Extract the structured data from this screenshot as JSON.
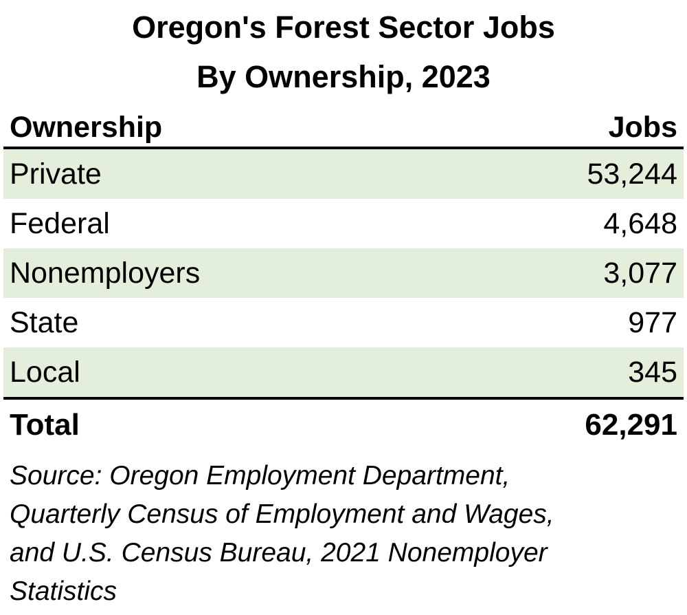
{
  "title_line1": "Oregon's Forest Sector Jobs",
  "title_line2": "By Ownership, 2023",
  "colors": {
    "row_highlight": "#e3efda",
    "text": "#000000",
    "rule": "#000000"
  },
  "chart_data": {
    "type": "table",
    "title": "Oregon's Forest Sector Jobs By Ownership, 2023",
    "columns": [
      "Ownership",
      "Jobs"
    ],
    "rows": [
      {
        "label": "Private",
        "value": "53,244",
        "highlight": true
      },
      {
        "label": "Federal",
        "value": "4,648",
        "highlight": false
      },
      {
        "label": "Nonemployers",
        "value": "3,077",
        "highlight": true
      },
      {
        "label": "State",
        "value": "977",
        "highlight": false
      },
      {
        "label": "Local",
        "value": "345",
        "highlight": true
      }
    ],
    "total": {
      "label": "Total",
      "value": "62,291"
    }
  },
  "source_lines": [
    "Source: Oregon Employment Department,",
    "Quarterly Census of Employment and Wages,",
    "and U.S. Census Bureau, 2021 Nonemployer",
    "Statistics"
  ]
}
